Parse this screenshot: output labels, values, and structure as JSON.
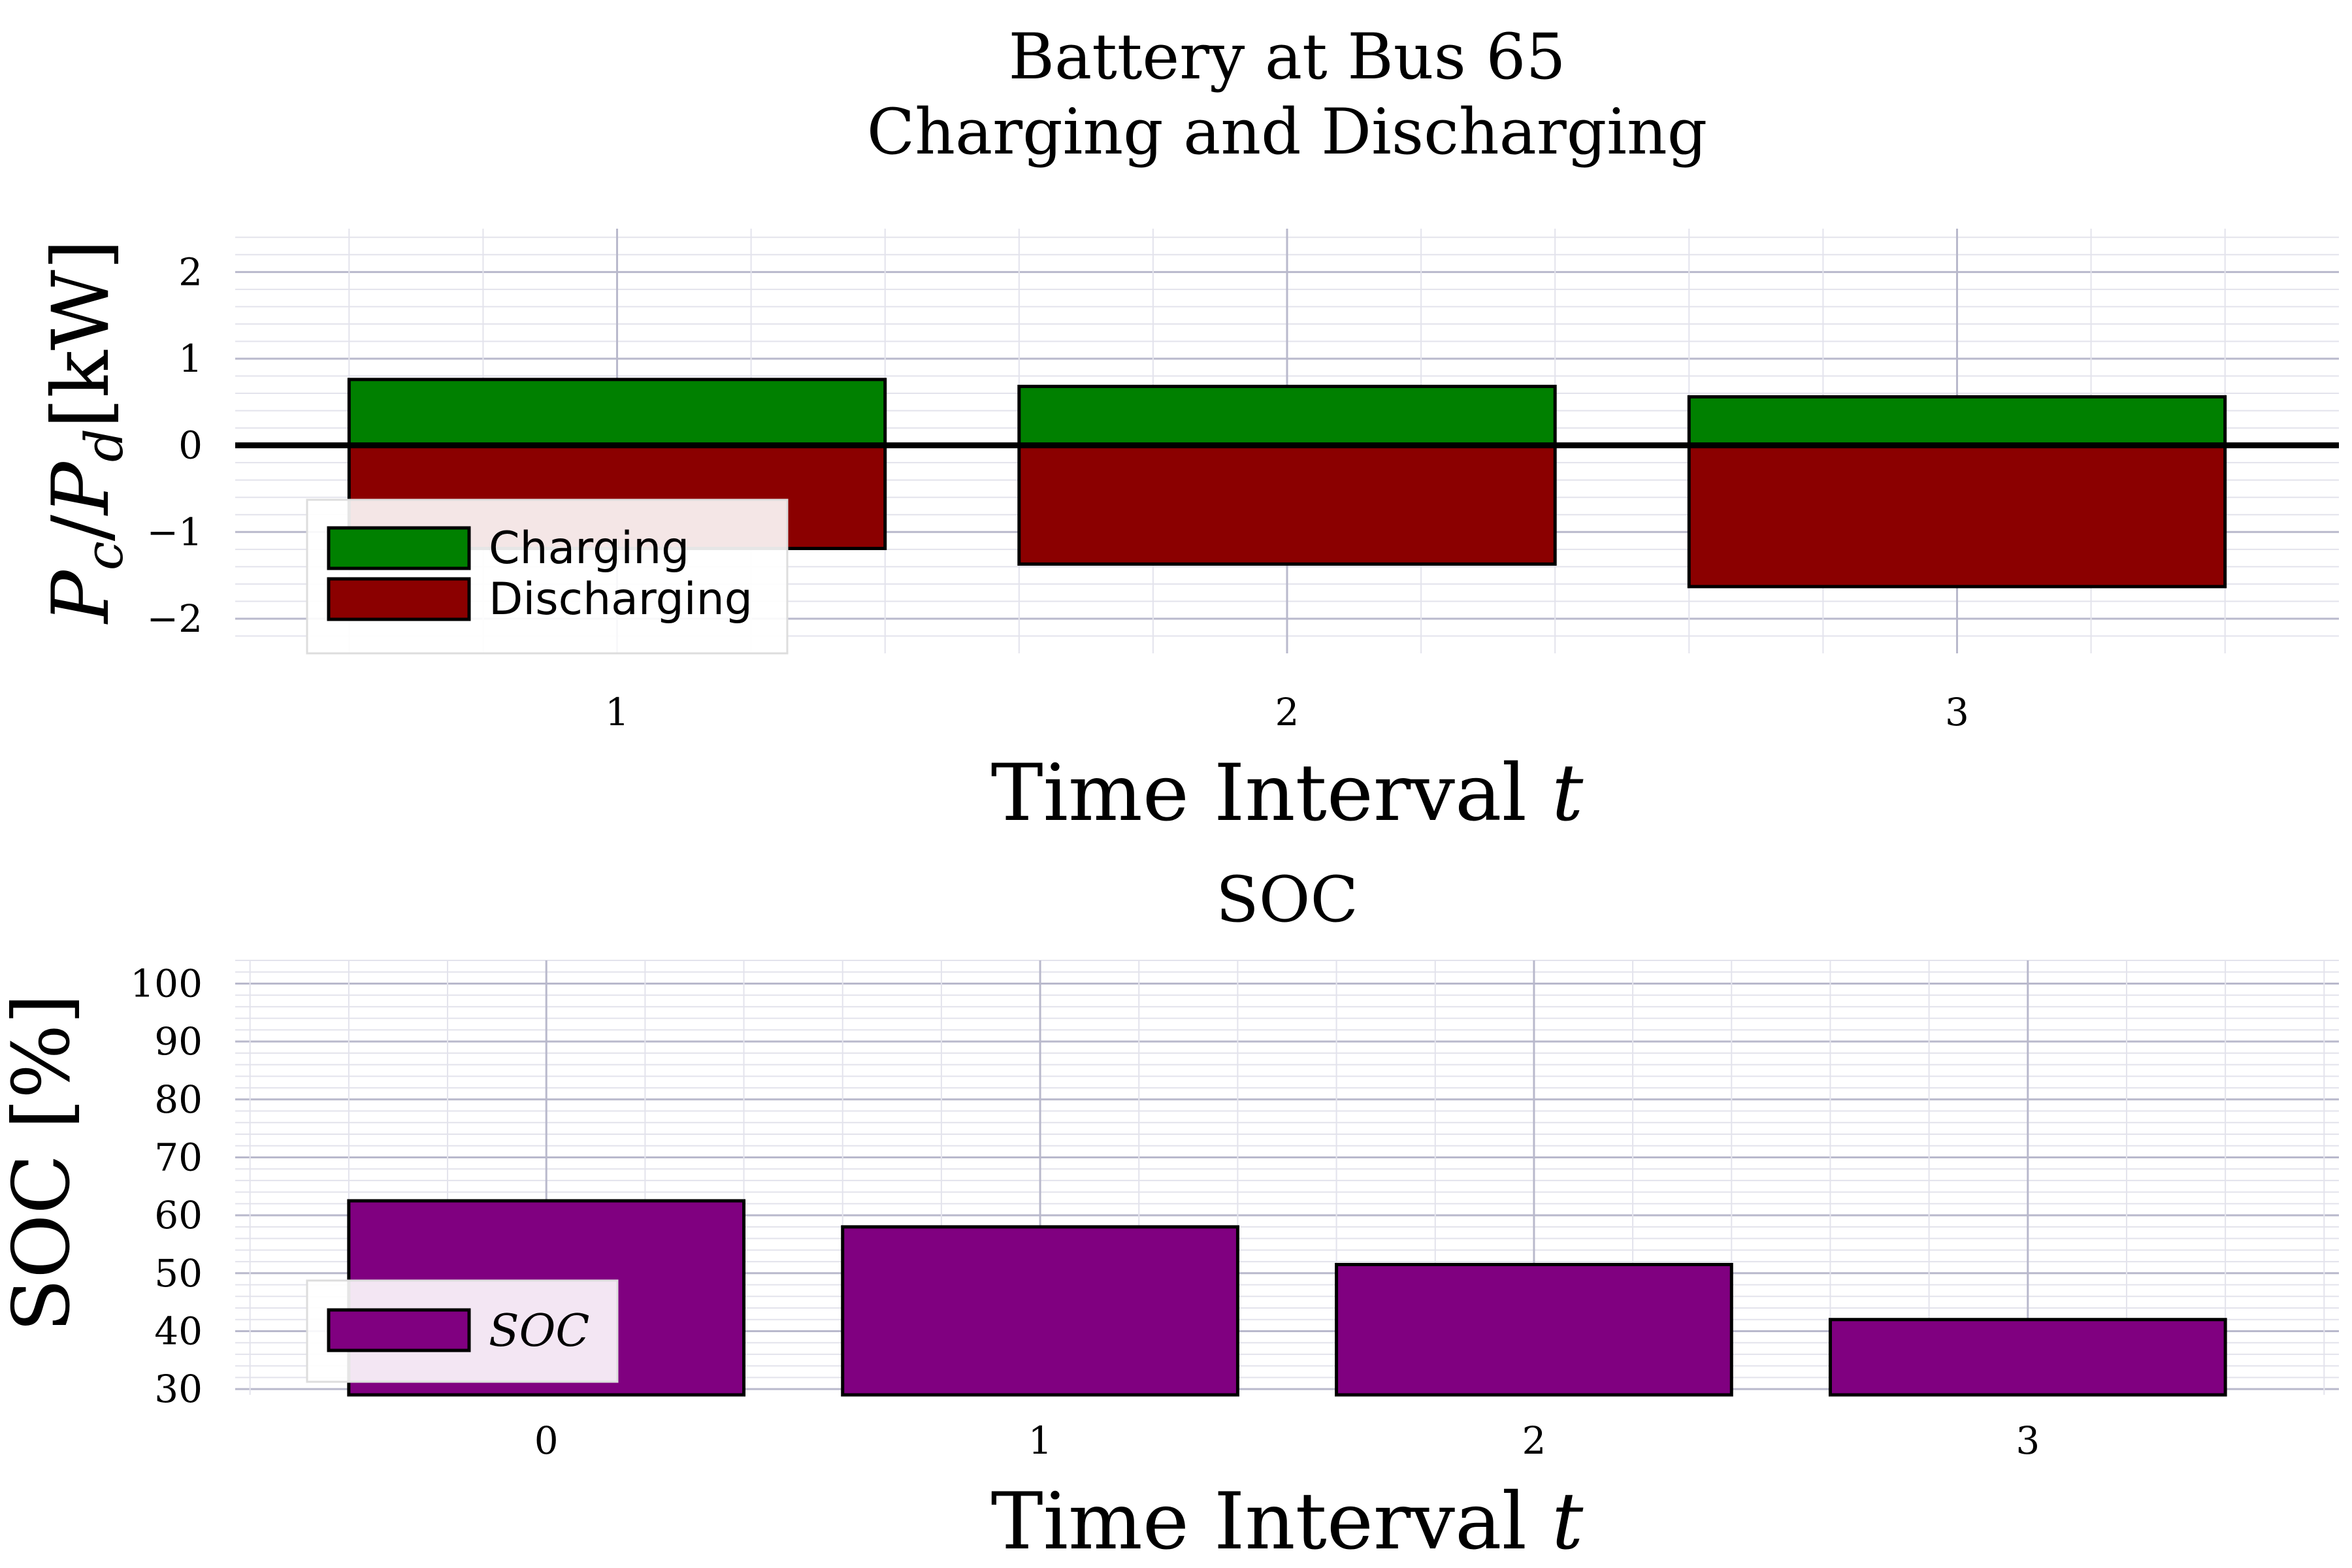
{
  "figure": {
    "colors": {
      "charging": "#008000",
      "discharging": "#8b0000",
      "soc": "#800080",
      "zero_line": "#000000"
    }
  },
  "chart_data": [
    {
      "type": "bar",
      "title_line1": "Battery at Bus 65",
      "title_line2": "Charging and Discharging",
      "xlabel": "Time Interval",
      "xlabel_var": "t",
      "ylabel_main": "P",
      "ylabel_sub_c": "c",
      "ylabel_slash": "/",
      "ylabel_sub_d": "d",
      "ylabel_unit": "[kW]",
      "categories": [
        "1",
        "2",
        "3"
      ],
      "x": [
        1,
        2,
        3
      ],
      "xlim": [
        0.43,
        3.57
      ],
      "ylim": [
        -2.4,
        2.5
      ],
      "yticks": [
        2,
        1,
        0,
        -1,
        -2
      ],
      "ytick_labels": [
        "2",
        "1",
        "0",
        "−1",
        "−2"
      ],
      "grid": true,
      "legend_position": "bottom-left",
      "series": [
        {
          "name": "Charging",
          "values": [
            0.76,
            0.68,
            0.56
          ]
        },
        {
          "name": "Discharging",
          "values": [
            -1.19,
            -1.37,
            -1.63
          ]
        }
      ]
    },
    {
      "type": "bar",
      "title": "SOC",
      "xlabel": "Time Interval",
      "xlabel_var": "t",
      "ylabel": "SOC [%]",
      "categories": [
        "0",
        "1",
        "2",
        "3"
      ],
      "x": [
        0,
        1,
        2,
        3
      ],
      "xlim": [
        -0.63,
        3.63
      ],
      "ylim": [
        29,
        104
      ],
      "yticks": [
        100,
        90,
        80,
        70,
        60,
        50,
        40,
        30
      ],
      "ytick_labels": [
        "100",
        "90",
        "80",
        "70",
        "60",
        "50",
        "40",
        "30"
      ],
      "grid": true,
      "legend_position": "bottom-left",
      "series": [
        {
          "name": "SOC",
          "values": [
            62.5,
            58.0,
            51.5,
            42.0
          ]
        }
      ]
    }
  ]
}
